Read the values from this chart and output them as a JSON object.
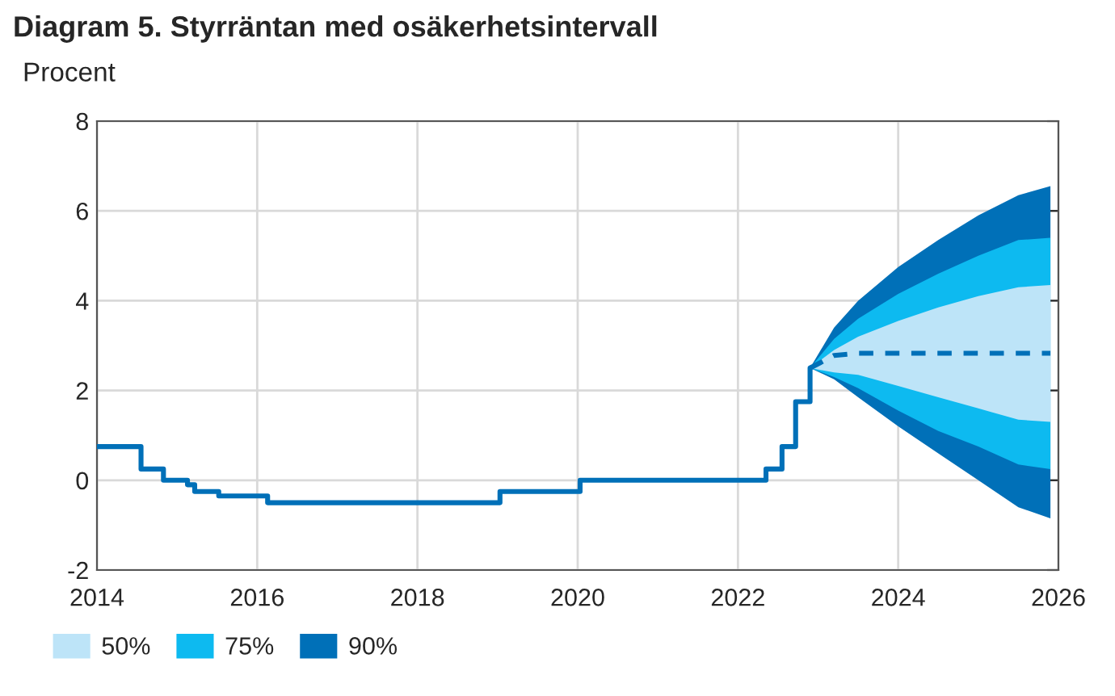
{
  "chart_data": {
    "type": "line",
    "title": "Diagram 5. Styrräntan med osäkerhetsintervall",
    "subtitle": "Procent",
    "xlim": [
      2014,
      2026
    ],
    "xticks": [
      2014,
      2016,
      2018,
      2020,
      2022,
      2024,
      2026
    ],
    "ylim": [
      -2,
      8
    ],
    "yticks": [
      -2,
      0,
      2,
      4,
      6,
      8
    ],
    "grid": true,
    "legend": "bottom left",
    "series": [
      {
        "name": "90%",
        "color": "#0070b8",
        "line_style": "dashed",
        "x": [
          2022.9,
          2023.2,
          2023.5,
          2024,
          2024.5,
          2025,
          2025.5,
          2025.9
        ],
        "values": [
          2.5,
          2.78,
          2.83,
          2.83,
          2.83,
          2.83,
          2.83,
          2.83
        ],
        "lower": [
          2.5,
          2.25,
          1.85,
          1.2,
          0.6,
          0.0,
          -0.6,
          -0.85
        ],
        "upper": [
          2.5,
          3.4,
          4.0,
          4.75,
          5.35,
          5.9,
          6.35,
          6.55
        ]
      },
      {
        "name": "75%",
        "color": "#0dbaf0",
        "x": [
          2022.9,
          2023.2,
          2023.5,
          2024,
          2024.5,
          2025,
          2025.5,
          2025.9
        ],
        "values": [
          null,
          null,
          null,
          null,
          null,
          null,
          null,
          null
        ],
        "lower": [
          2.5,
          2.3,
          2.05,
          1.55,
          1.1,
          0.75,
          0.35,
          0.25
        ],
        "upper": [
          2.5,
          3.15,
          3.6,
          4.15,
          4.6,
          5.0,
          5.35,
          5.4
        ]
      },
      {
        "name": "50%",
        "color": "#bde4f8",
        "x": [
          2022.9,
          2023.2,
          2023.5,
          2024,
          2024.5,
          2025,
          2025.5,
          2025.9
        ],
        "values": [
          null,
          null,
          null,
          null,
          null,
          null,
          null,
          null
        ],
        "lower": [
          2.5,
          2.4,
          2.35,
          2.1,
          1.85,
          1.6,
          1.35,
          1.3
        ],
        "upper": [
          2.5,
          2.9,
          3.2,
          3.55,
          3.85,
          4.1,
          4.3,
          4.35
        ]
      },
      {
        "type": "step",
        "color": "#0070b8",
        "line_style": "solid",
        "x": [
          2014,
          2014.55,
          2014.83,
          2015.13,
          2015.22,
          2015.52,
          2016.13,
          2019.03,
          2020.03,
          2022.35,
          2022.55,
          2022.72,
          2022.9
        ],
        "values": [
          0.75,
          0.25,
          0,
          -0.1,
          -0.25,
          -0.35,
          -0.5,
          -0.25,
          0,
          0.25,
          0.75,
          1.75,
          2.5
        ]
      }
    ]
  }
}
